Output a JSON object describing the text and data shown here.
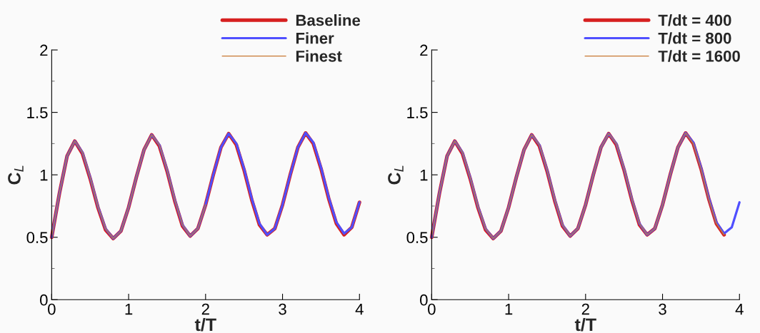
{
  "chart_data": [
    {
      "type": "line",
      "xlabel": "t/T",
      "ylabel": "C$_{L}$",
      "xlim": [
        0,
        4
      ],
      "ylim": [
        0,
        2
      ],
      "xticks": [
        0,
        1,
        2,
        3,
        4
      ],
      "yticks": [
        0,
        {
          "value": 0.25,
          "label": null
        },
        0.5,
        {
          "value": 0.75,
          "label": null
        },
        1,
        {
          "value": 1.25,
          "label": null
        },
        1.5,
        {
          "value": 1.75,
          "label": null
        },
        2
      ],
      "legend": "top right",
      "grid": false,
      "x": [
        0,
        0.1,
        0.2,
        0.3,
        0.4,
        0.5,
        0.6,
        0.7,
        0.8,
        0.9,
        1.0,
        1.1,
        1.2,
        1.3,
        1.4,
        1.5,
        1.6,
        1.7,
        1.8,
        1.9,
        2.0,
        2.1,
        2.2,
        2.3,
        2.4,
        2.5,
        2.6,
        2.7,
        2.8,
        2.9,
        3.0,
        3.1,
        3.2,
        3.3,
        3.4,
        3.5,
        3.6,
        3.7,
        3.8,
        3.9,
        4.0
      ],
      "series": [
        {
          "name": "Baseline",
          "color": "#d62020",
          "values": [
            0.5,
            0.85,
            1.15,
            1.27,
            1.17,
            0.97,
            0.74,
            0.56,
            0.49,
            0.55,
            0.74,
            0.98,
            1.2,
            1.32,
            1.23,
            1.03,
            0.79,
            0.59,
            0.51,
            0.57,
            0.76,
            1.0,
            1.22,
            1.33,
            1.24,
            1.04,
            0.8,
            0.6,
            0.52,
            0.57,
            0.76,
            1.0,
            1.22,
            1.335,
            1.25,
            1.05,
            0.81,
            0.61,
            0.52,
            0.58,
            0.78
          ]
        },
        {
          "name": "Finer",
          "color": "#4f4fff",
          "values": [
            0.5,
            0.85,
            1.15,
            1.27,
            1.18,
            0.98,
            0.75,
            0.57,
            0.49,
            0.55,
            0.74,
            0.98,
            1.2,
            1.32,
            1.24,
            1.04,
            0.8,
            0.6,
            0.51,
            0.57,
            0.76,
            1.0,
            1.22,
            1.33,
            1.25,
            1.05,
            0.81,
            0.61,
            0.52,
            0.57,
            0.76,
            1.0,
            1.22,
            1.335,
            1.26,
            1.06,
            0.82,
            0.62,
            0.53,
            0.58,
            0.78
          ]
        },
        {
          "name": "Finest",
          "color": "#c87832",
          "x": [
            0,
            0.1,
            0.2,
            0.3,
            0.4,
            0.5,
            0.6,
            0.7,
            0.8,
            0.9,
            1.0,
            1.1,
            1.2,
            1.3,
            1.4,
            1.5,
            1.6,
            1.7,
            1.8,
            1.9,
            2.0
          ],
          "values": [
            0.5,
            0.85,
            1.15,
            1.27,
            1.18,
            0.98,
            0.75,
            0.57,
            0.49,
            0.55,
            0.74,
            0.98,
            1.2,
            1.32,
            1.24,
            1.04,
            0.8,
            0.6,
            0.51,
            0.57,
            0.76
          ]
        }
      ]
    },
    {
      "type": "line",
      "xlabel": "t/T",
      "ylabel": "C$_{L}$",
      "xlim": [
        0,
        4
      ],
      "ylim": [
        0,
        2
      ],
      "xticks": [
        0,
        1,
        2,
        3,
        4
      ],
      "yticks": [
        0,
        {
          "value": 0.25,
          "label": null
        },
        0.5,
        {
          "value": 0.75,
          "label": null
        },
        1,
        {
          "value": 1.25,
          "label": null
        },
        1.5,
        {
          "value": 1.75,
          "label": null
        },
        2
      ],
      "legend": "top right",
      "grid": false,
      "x": [
        0,
        0.1,
        0.2,
        0.3,
        0.4,
        0.5,
        0.6,
        0.7,
        0.8,
        0.9,
        1.0,
        1.1,
        1.2,
        1.3,
        1.4,
        1.5,
        1.6,
        1.7,
        1.8,
        1.9,
        2.0,
        2.1,
        2.2,
        2.3,
        2.4,
        2.5,
        2.6,
        2.7,
        2.8,
        2.9,
        3.0,
        3.1,
        3.2,
        3.3,
        3.4,
        3.5,
        3.6,
        3.7,
        3.8
      ],
      "series": [
        {
          "name": "T/dt = 400",
          "color": "#d62020",
          "values": [
            0.5,
            0.85,
            1.15,
            1.27,
            1.17,
            0.97,
            0.74,
            0.56,
            0.49,
            0.55,
            0.74,
            0.98,
            1.2,
            1.32,
            1.23,
            1.03,
            0.79,
            0.59,
            0.51,
            0.57,
            0.76,
            1.0,
            1.22,
            1.33,
            1.24,
            1.04,
            0.8,
            0.6,
            0.52,
            0.57,
            0.76,
            1.0,
            1.22,
            1.335,
            1.25,
            1.05,
            0.81,
            0.61,
            0.52
          ]
        },
        {
          "name": "T/dt = 800",
          "color": "#4f4fff",
          "x": [
            0,
            0.1,
            0.2,
            0.3,
            0.4,
            0.5,
            0.6,
            0.7,
            0.8,
            0.9,
            1.0,
            1.1,
            1.2,
            1.3,
            1.4,
            1.5,
            1.6,
            1.7,
            1.8,
            1.9,
            2.0,
            2.1,
            2.2,
            2.3,
            2.4,
            2.5,
            2.6,
            2.7,
            2.8,
            2.9,
            3.0,
            3.1,
            3.2,
            3.3,
            3.4,
            3.5,
            3.6,
            3.7,
            3.8,
            3.9,
            4.0
          ],
          "values": [
            0.5,
            0.85,
            1.15,
            1.27,
            1.18,
            0.98,
            0.75,
            0.57,
            0.49,
            0.55,
            0.74,
            0.98,
            1.2,
            1.32,
            1.24,
            1.04,
            0.8,
            0.6,
            0.51,
            0.57,
            0.76,
            1.0,
            1.22,
            1.33,
            1.25,
            1.05,
            0.81,
            0.61,
            0.52,
            0.57,
            0.76,
            1.0,
            1.22,
            1.335,
            1.26,
            1.06,
            0.82,
            0.62,
            0.53,
            0.58,
            0.78
          ]
        },
        {
          "name": "T/dt = 1600",
          "color": "#c87832",
          "values": [
            0.5,
            0.85,
            1.15,
            1.27,
            1.18,
            0.98,
            0.75,
            0.57,
            0.49,
            0.55,
            0.74,
            0.98,
            1.2,
            1.32,
            1.24,
            1.04,
            0.8,
            0.6,
            0.51,
            0.57,
            0.76,
            1.0,
            1.22,
            1.33,
            1.25,
            1.05,
            0.81,
            0.61,
            0.52,
            0.57,
            0.76,
            1.0,
            1.22,
            1.335,
            1.25,
            1.05,
            0.81,
            0.61,
            0.52
          ]
        }
      ]
    }
  ]
}
